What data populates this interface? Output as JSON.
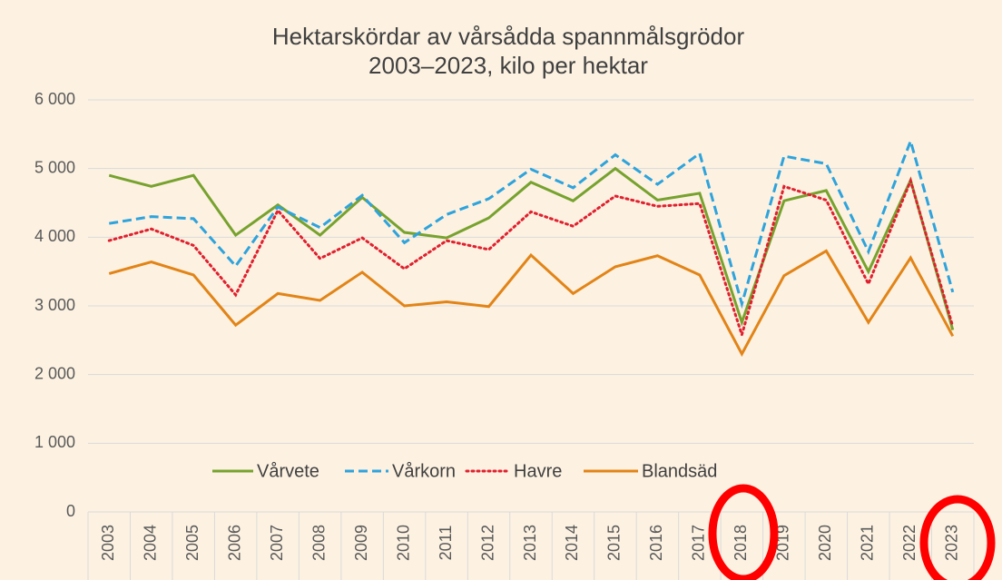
{
  "chart_data": {
    "type": "line",
    "title": "Hektarskördar av vårsådda spannmålsgrödor",
    "subtitle": "2003–2023, kilo per hektar",
    "categories": [
      "2003",
      "2004",
      "2005",
      "2006",
      "2007",
      "2008",
      "2009",
      "2010",
      "2011",
      "2012",
      "2013",
      "2014",
      "2015",
      "2016",
      "2017",
      "2018",
      "2019",
      "2020",
      "2021",
      "2022",
      "2023"
    ],
    "series": [
      {
        "name": "Vårvete",
        "color": "#77a22e",
        "dash": "solid",
        "values": [
          4900,
          4740,
          4900,
          4030,
          4470,
          4030,
          4580,
          4070,
          3990,
          4280,
          4800,
          4530,
          5000,
          4540,
          4640,
          2760,
          4530,
          4680,
          3500,
          4830,
          2650
        ]
      },
      {
        "name": "Vårkorn",
        "color": "#2ea3dc",
        "dash": "dashed",
        "values": [
          4200,
          4300,
          4270,
          3580,
          4440,
          4140,
          4610,
          3920,
          4330,
          4560,
          4990,
          4720,
          5200,
          4770,
          5220,
          3030,
          5180,
          5070,
          3790,
          5400,
          3200
        ]
      },
      {
        "name": "Havre",
        "color": "#e0202e",
        "dash": "dotted",
        "values": [
          3950,
          4120,
          3880,
          3160,
          4390,
          3690,
          3990,
          3540,
          3950,
          3820,
          4370,
          4160,
          4600,
          4450,
          4490,
          2580,
          4740,
          4540,
          3320,
          4820,
          2700
        ]
      },
      {
        "name": "Blandsäd",
        "color": "#e28417",
        "dash": "solid",
        "values": [
          3470,
          3640,
          3450,
          2720,
          3180,
          3080,
          3490,
          3000,
          3060,
          2990,
          3740,
          3180,
          3570,
          3730,
          3450,
          2300,
          3440,
          3800,
          2760,
          3700,
          2560
        ]
      }
    ],
    "ylim": [
      0,
      6000
    ],
    "yticks": [
      0,
      {
        "value": 1000,
        "label": "1 000"
      },
      {
        "value": 2000,
        "label": "2 000"
      },
      {
        "value": 3000,
        "label": "3 000"
      },
      {
        "value": 4000,
        "label": "4 000"
      },
      {
        "value": 5000,
        "label": "5 000"
      },
      {
        "value": 6000,
        "label": "6 000"
      }
    ],
    "grid": true,
    "legend": "bottom"
  }
}
